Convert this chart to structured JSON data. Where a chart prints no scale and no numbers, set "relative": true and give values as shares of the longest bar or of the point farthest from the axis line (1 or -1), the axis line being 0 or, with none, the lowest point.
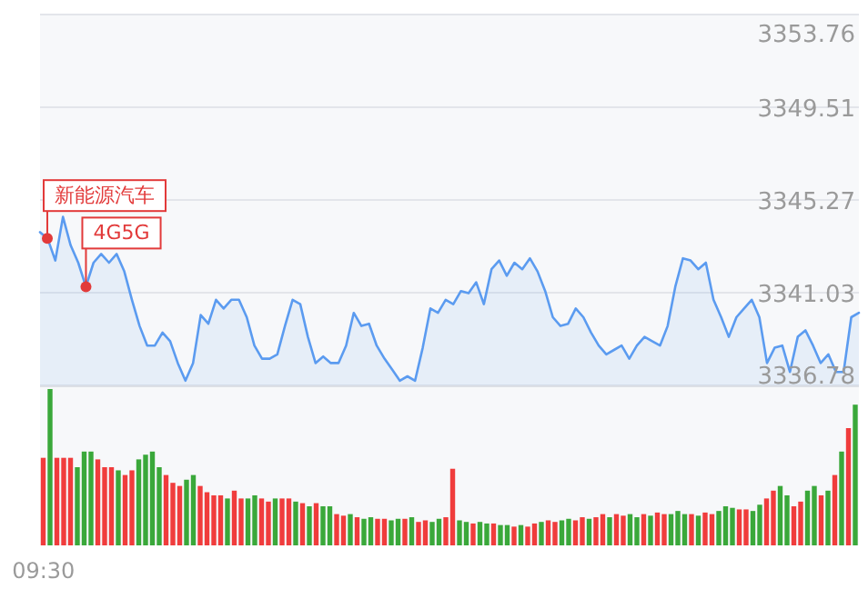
{
  "chart_data": [
    {
      "type": "area",
      "tick_labels": "y",
      "categories": [
        null,
        null,
        null,
        null,
        null,
        null,
        null,
        null,
        null,
        null,
        null,
        null,
        null,
        null,
        null,
        null,
        null,
        null,
        null,
        null,
        null,
        null,
        null,
        null,
        null,
        null,
        null,
        null,
        null,
        null,
        null,
        null,
        null,
        null,
        null,
        null,
        null,
        null,
        null,
        null,
        null,
        null,
        null,
        null,
        null,
        null,
        null,
        null,
        null,
        null,
        null,
        null,
        null,
        null,
        null,
        null,
        null,
        null,
        null,
        null,
        null,
        null,
        null,
        null,
        null,
        null,
        null,
        null,
        null,
        null,
        null,
        null,
        null,
        null,
        null,
        null,
        null,
        null,
        null,
        null,
        null,
        null,
        null,
        null,
        null,
        null,
        null,
        null,
        null,
        null,
        null,
        null,
        null,
        null,
        null,
        null,
        null,
        null,
        null,
        null,
        null,
        null,
        null,
        null,
        null,
        null,
        null,
        null
      ],
      "ylim": [
        3336.78,
        3353.76
      ],
      "yticks": [
        {
          "value": 3336.78,
          "label": "3336.78"
        },
        {
          "value": 3341.03,
          "label": "3341.03"
        },
        {
          "value": 3345.27,
          "label": "3345.27"
        },
        {
          "value": 3349.51,
          "label": "3349.51"
        },
        {
          "value": 3353.76,
          "label": "3353.76"
        }
      ],
      "grid": "y",
      "series": [
        {
          "color": "#5b9bf0",
          "values": [
            3343.8,
            3343.5,
            3342.5,
            3344.5,
            3343.2,
            3342.4,
            3341.3,
            3342.4,
            3342.8,
            3342.4,
            3342.8,
            3342.0,
            3340.7,
            3339.5,
            3338.6,
            3338.6,
            3339.2,
            3338.8,
            3337.8,
            3337.0,
            3337.8,
            3340.0,
            3339.6,
            3340.7,
            3340.3,
            3340.7,
            3340.7,
            3339.9,
            3338.6,
            3338.0,
            3338.0,
            3338.2,
            3339.5,
            3340.7,
            3340.5,
            3339.0,
            3337.8,
            3338.1,
            3337.8,
            3337.8,
            3338.6,
            3340.1,
            3339.5,
            3339.6,
            3338.6,
            3338.0,
            3337.5,
            3337.0,
            3337.2,
            3337.0,
            3338.5,
            3340.3,
            3340.1,
            3340.7,
            3340.5,
            3341.1,
            3341.0,
            3341.5,
            3340.5,
            3342.1,
            3342.5,
            3341.8,
            3342.4,
            3342.1,
            3342.6,
            3342.0,
            3341.1,
            3339.9,
            3339.5,
            3339.6,
            3340.3,
            3339.9,
            3339.2,
            3338.6,
            3338.2,
            3338.4,
            3338.6,
            3338.0,
            3338.6,
            3339.0,
            3338.8,
            3338.6,
            3339.5,
            3341.3,
            3342.6,
            3342.5,
            3342.1,
            3342.4,
            3340.7,
            3339.9,
            3339.0,
            3339.9,
            3340.3,
            3340.7,
            3339.9,
            3337.8,
            3338.5,
            3338.6,
            3337.4,
            3339.0,
            3339.3,
            3338.6,
            3337.8,
            3338.2,
            3337.4,
            3337.4,
            3339.9,
            3340.1
          ]
        }
      ],
      "annotations": [
        "新能源汽车",
        {
          "text": "4G5G",
          "y": 3341.3
        }
      ]
    },
    {
      "type": "bar",
      "relative": true,
      "tick_labels": "x",
      "categories": [
        "09:30",
        null,
        null,
        null,
        null,
        null,
        null,
        null,
        null,
        null,
        null,
        null,
        null,
        null,
        null,
        null,
        null,
        null,
        null,
        null,
        null,
        null,
        null,
        null,
        null,
        null,
        null,
        null,
        null,
        null,
        null,
        null,
        null,
        null,
        null,
        null,
        null,
        null,
        null,
        null,
        null,
        null,
        null,
        null,
        null,
        null,
        null,
        null,
        null,
        null,
        null,
        null,
        null,
        null,
        null,
        null,
        null,
        null,
        null,
        null,
        null,
        null,
        null,
        null,
        null,
        null,
        null,
        null,
        null,
        null,
        null,
        null,
        null,
        null,
        null,
        null,
        null,
        null,
        null,
        null,
        null,
        null,
        null,
        null,
        null,
        null,
        null,
        null,
        null,
        null,
        null,
        null,
        null,
        null,
        null,
        null,
        null,
        null,
        null,
        null,
        null,
        null,
        null,
        null,
        null,
        null,
        null,
        null,
        null,
        null,
        null,
        null,
        null,
        null,
        null,
        null,
        null,
        null,
        null,
        null
      ],
      "values": [
        0.56,
        1.0,
        0.56,
        0.56,
        0.56,
        0.5,
        0.6,
        0.6,
        0.55,
        0.5,
        0.5,
        0.48,
        0.45,
        0.48,
        0.55,
        0.58,
        0.6,
        0.5,
        0.45,
        0.4,
        0.38,
        0.42,
        0.45,
        0.38,
        0.34,
        0.32,
        0.32,
        0.3,
        0.35,
        0.3,
        0.3,
        0.32,
        0.3,
        0.28,
        0.3,
        0.3,
        0.3,
        0.28,
        0.27,
        0.25,
        0.27,
        0.25,
        0.25,
        0.2,
        0.19,
        0.2,
        0.18,
        0.17,
        0.18,
        0.17,
        0.17,
        0.16,
        0.17,
        0.17,
        0.18,
        0.15,
        0.16,
        0.15,
        0.17,
        0.18,
        0.49,
        0.16,
        0.15,
        0.14,
        0.15,
        0.14,
        0.14,
        0.13,
        0.13,
        0.12,
        0.13,
        0.12,
        0.14,
        0.15,
        0.16,
        0.15,
        0.16,
        0.17,
        0.16,
        0.18,
        0.17,
        0.18,
        0.2,
        0.18,
        0.2,
        0.19,
        0.2,
        0.18,
        0.2,
        0.19,
        0.21,
        0.2,
        0.2,
        0.22,
        0.2,
        0.2,
        0.19,
        0.21,
        0.2,
        0.22,
        0.25,
        0.24,
        0.23,
        0.23,
        0.22,
        0.26,
        0.3,
        0.35,
        0.38,
        0.32,
        0.25,
        0.28,
        0.35,
        0.38,
        0.32,
        0.35,
        0.45,
        0.6,
        0.75,
        0.9
      ],
      "colors": [
        "#f03c3c",
        "#3aa83a",
        "#f03c3c",
        "#f03c3c",
        "#f03c3c",
        "#3aa83a",
        "#3aa83a",
        "#3aa83a",
        "#f03c3c",
        "#f03c3c",
        "#f03c3c",
        "#3aa83a",
        "#f03c3c",
        "#f03c3c",
        "#3aa83a",
        "#3aa83a",
        "#3aa83a",
        "#3aa83a",
        "#f03c3c",
        "#f03c3c",
        "#f03c3c",
        "#3aa83a",
        "#3aa83a",
        "#f03c3c",
        "#f03c3c",
        "#f03c3c",
        "#f03c3c",
        "#3aa83a",
        "#f03c3c",
        "#f03c3c",
        "#3aa83a",
        "#3aa83a",
        "#f03c3c",
        "#f03c3c",
        "#3aa83a",
        "#f03c3c",
        "#f03c3c",
        "#3aa83a",
        "#f03c3c",
        "#3aa83a",
        "#f03c3c",
        "#3aa83a",
        "#3aa83a",
        "#f03c3c",
        "#f03c3c",
        "#3aa83a",
        "#f03c3c",
        "#3aa83a",
        "#3aa83a",
        "#f03c3c",
        "#f03c3c",
        "#3aa83a",
        "#3aa83a",
        "#f03c3c",
        "#3aa83a",
        "#f03c3c",
        "#f03c3c",
        "#3aa83a",
        "#3aa83a",
        "#f03c3c",
        "#f03c3c",
        "#3aa83a",
        "#3aa83a",
        "#f03c3c",
        "#3aa83a",
        "#3aa83a",
        "#f03c3c",
        "#3aa83a",
        "#3aa83a",
        "#f03c3c",
        "#3aa83a",
        "#f03c3c",
        "#f03c3c",
        "#3aa83a",
        "#f03c3c",
        "#f03c3c",
        "#3aa83a",
        "#3aa83a",
        "#f03c3c",
        "#f03c3c",
        "#3aa83a",
        "#f03c3c",
        "#f03c3c",
        "#3aa83a",
        "#f03c3c",
        "#f03c3c",
        "#3aa83a",
        "#3aa83a",
        "#f03c3c",
        "#3aa83a",
        "#f03c3c",
        "#f03c3c",
        "#3aa83a",
        "#3aa83a",
        "#3aa83a",
        "#f03c3c",
        "#3aa83a",
        "#f03c3c",
        "#f03c3c",
        "#3aa83a",
        "#3aa83a",
        "#3aa83a",
        "#f03c3c",
        "#f03c3c",
        "#3aa83a",
        "#3aa83a",
        "#f03c3c",
        "#f03c3c",
        "#3aa83a",
        "#3aa83a",
        "#f03c3c",
        "#f03c3c",
        "#3aa83a",
        "#3aa83a",
        "#f03c3c",
        "#3aa83a",
        "#f03c3c",
        "#3aa83a",
        "#f03c3c",
        "#3aa83a"
      ]
    }
  ]
}
